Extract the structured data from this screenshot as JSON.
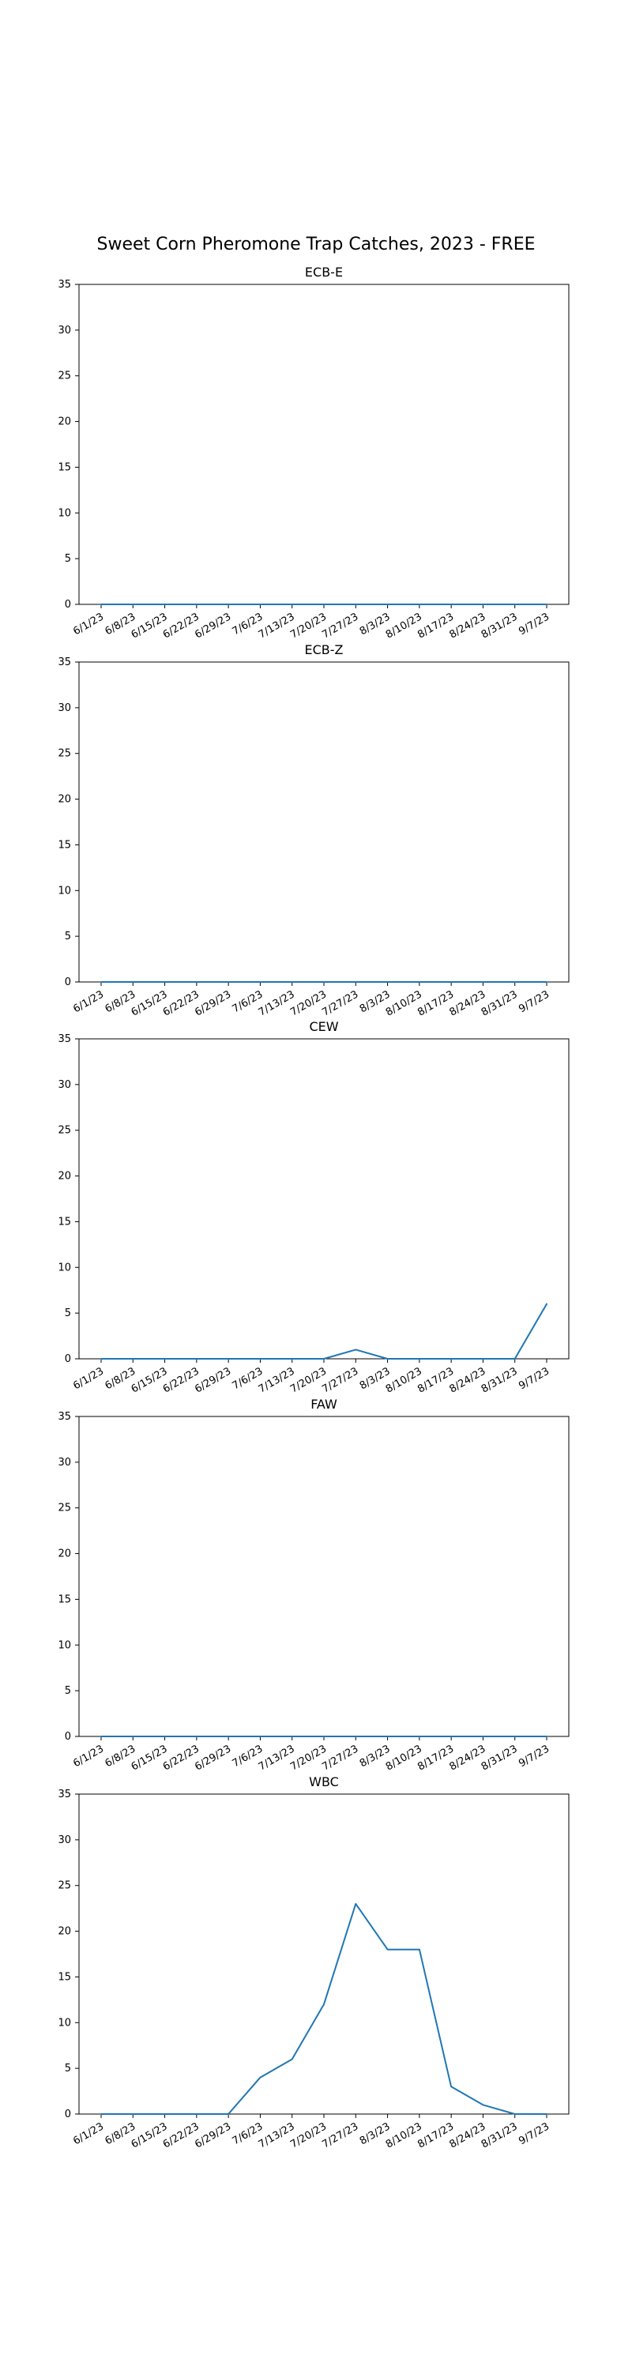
{
  "figure": {
    "title": "Sweet Corn Pheromone Trap Catches, 2023 - FREE",
    "line_color": "#1f77b4"
  },
  "chart_data": [
    {
      "type": "line",
      "title": "ECB-E",
      "categories": [
        "6/1/23",
        "6/8/23",
        "6/15/23",
        "6/22/23",
        "6/29/23",
        "7/6/23",
        "7/13/23",
        "7/20/23",
        "7/27/23",
        "8/3/23",
        "8/10/23",
        "8/17/23",
        "8/24/23",
        "8/31/23",
        "9/7/23"
      ],
      "values": [
        0,
        0,
        0,
        0,
        0,
        0,
        0,
        0,
        0,
        0,
        0,
        0,
        0,
        0,
        0
      ],
      "ylim": [
        0,
        35
      ],
      "yticks": [
        0,
        5,
        10,
        15,
        20,
        25,
        30,
        35
      ],
      "grid": false
    },
    {
      "type": "line",
      "title": "ECB-Z",
      "categories": [
        "6/1/23",
        "6/8/23",
        "6/15/23",
        "6/22/23",
        "6/29/23",
        "7/6/23",
        "7/13/23",
        "7/20/23",
        "7/27/23",
        "8/3/23",
        "8/10/23",
        "8/17/23",
        "8/24/23",
        "8/31/23",
        "9/7/23"
      ],
      "values": [
        0,
        0,
        0,
        0,
        0,
        0,
        0,
        0,
        0,
        0,
        0,
        0,
        0,
        0,
        0
      ],
      "ylim": [
        0,
        35
      ],
      "yticks": [
        0,
        5,
        10,
        15,
        20,
        25,
        30,
        35
      ],
      "grid": false
    },
    {
      "type": "line",
      "title": "CEW",
      "categories": [
        "6/1/23",
        "6/8/23",
        "6/15/23",
        "6/22/23",
        "6/29/23",
        "7/6/23",
        "7/13/23",
        "7/20/23",
        "7/27/23",
        "8/3/23",
        "8/10/23",
        "8/17/23",
        "8/24/23",
        "8/31/23",
        "9/7/23"
      ],
      "values": [
        0,
        0,
        0,
        0,
        0,
        0,
        0,
        0,
        1,
        0,
        0,
        0,
        0,
        0,
        6
      ],
      "ylim": [
        0,
        35
      ],
      "yticks": [
        0,
        5,
        10,
        15,
        20,
        25,
        30,
        35
      ],
      "grid": false
    },
    {
      "type": "line",
      "title": "FAW",
      "categories": [
        "6/1/23",
        "6/8/23",
        "6/15/23",
        "6/22/23",
        "6/29/23",
        "7/6/23",
        "7/13/23",
        "7/20/23",
        "7/27/23",
        "8/3/23",
        "8/10/23",
        "8/17/23",
        "8/24/23",
        "8/31/23",
        "9/7/23"
      ],
      "values": [
        0,
        0,
        0,
        0,
        0,
        0,
        0,
        0,
        0,
        0,
        0,
        0,
        0,
        0,
        0
      ],
      "ylim": [
        0,
        35
      ],
      "yticks": [
        0,
        5,
        10,
        15,
        20,
        25,
        30,
        35
      ],
      "grid": false
    },
    {
      "type": "line",
      "title": "WBC",
      "categories": [
        "6/1/23",
        "6/8/23",
        "6/15/23",
        "6/22/23",
        "6/29/23",
        "7/6/23",
        "7/13/23",
        "7/20/23",
        "7/27/23",
        "8/3/23",
        "8/10/23",
        "8/17/23",
        "8/24/23",
        "8/31/23",
        "9/7/23"
      ],
      "values": [
        0,
        0,
        0,
        0,
        0,
        4,
        6,
        12,
        23,
        18,
        18,
        3,
        1,
        0,
        0
      ],
      "ylim": [
        0,
        35
      ],
      "yticks": [
        0,
        5,
        10,
        15,
        20,
        25,
        30,
        35
      ],
      "grid": false
    }
  ]
}
